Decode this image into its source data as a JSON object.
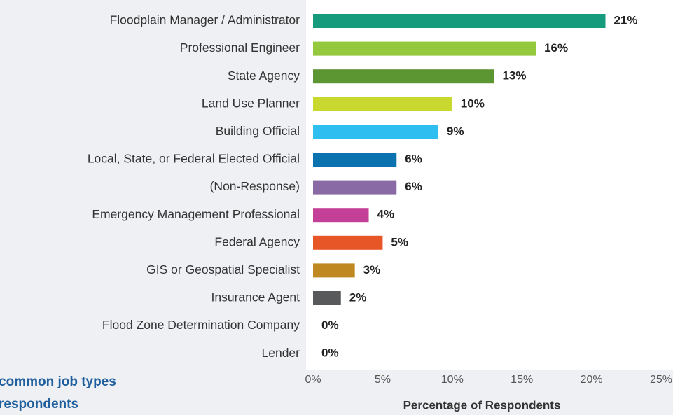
{
  "chart_data": {
    "type": "bar",
    "orientation": "horizontal",
    "categories": [
      "Floodplain Manager / Administrator",
      "Professional Engineer",
      "State Agency",
      "Land Use Planner",
      "Building Official",
      "Local, State, or Federal Elected Official",
      "(Non-Response)",
      "Emergency Management Professional",
      "Federal Agency",
      "GIS or Geospatial Specialist",
      "Insurance Agent",
      "Flood Zone Determination Company",
      "Lender"
    ],
    "values": [
      21,
      16,
      13,
      10,
      9,
      6,
      6,
      4,
      5,
      3,
      2,
      0,
      0
    ],
    "value_labels": [
      "21%",
      "16%",
      "13%",
      "10%",
      "9%",
      "6%",
      "6%",
      "4%",
      "5%",
      "3%",
      "2%",
      "0%",
      "0%"
    ],
    "colors": [
      "#169b7c",
      "#95c93d",
      "#5c9632",
      "#c9d82e",
      "#2ebeef",
      "#0b72b0",
      "#8a6aa5",
      "#c43f97",
      "#e65626",
      "#c08820",
      "#58595b",
      "#999999",
      "#999999"
    ],
    "xlim": [
      0,
      25
    ],
    "xticks": [
      {
        "value": 0,
        "label": "0%"
      },
      {
        "value": 5,
        "label": "5%"
      },
      {
        "value": 10,
        "label": "10%"
      },
      {
        "value": 15,
        "label": "15%"
      },
      {
        "value": 20,
        "label": "20%"
      },
      {
        "value": 25,
        "label": "25%"
      }
    ],
    "xlabel": "Percentage of Respondents",
    "caption": [
      "common job types",
      "respondents"
    ],
    "grid": false
  }
}
